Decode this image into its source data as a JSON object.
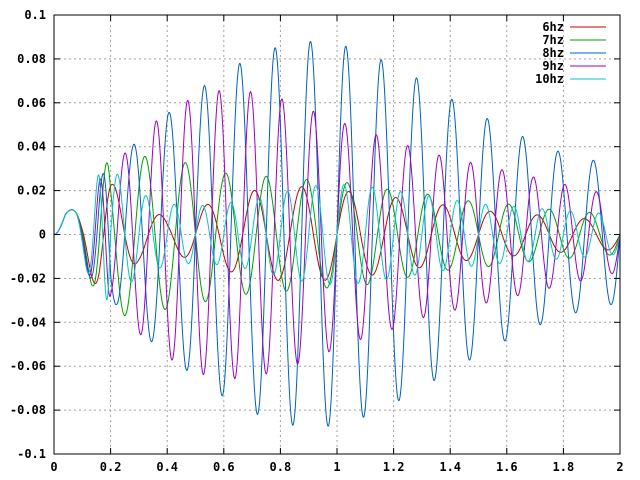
{
  "chart_data": {
    "type": "line",
    "title": "",
    "xlabel": "",
    "ylabel": "",
    "xlim": [
      0,
      2
    ],
    "ylim": [
      -0.1,
      0.1
    ],
    "grid": true,
    "legend_position": "top-right",
    "x_ticks": [
      0,
      0.2,
      0.4,
      0.6,
      0.8,
      1,
      1.2,
      1.4,
      1.6,
      1.8,
      2
    ],
    "x_tick_labels": [
      "0",
      "0.2",
      "0.4",
      "0.6",
      "0.8",
      "1",
      "1.2",
      "1.4",
      "1.6",
      "1.8",
      "2"
    ],
    "y_ticks": [
      -0.1,
      -0.08,
      -0.06,
      -0.04,
      -0.02,
      0,
      0.02,
      0.04,
      0.06,
      0.08,
      0.1
    ],
    "y_tick_labels": [
      "-0.1",
      "-0.08",
      "-0.06",
      "-0.04",
      "-0.02",
      "0",
      "0.02",
      "0.04",
      "0.06",
      "0.08",
      "0.1"
    ],
    "series": [
      {
        "name": "6hz",
        "color": "#cc0000",
        "x": [
          0,
          0.04,
          0.07,
          0.1,
          0.13,
          0.16,
          0.19,
          0.22,
          0.25,
          0.3,
          0.4,
          0.5,
          0.6,
          0.7,
          0.8,
          0.9,
          1.0,
          1.1,
          1.2,
          1.3,
          1.4,
          1.5,
          1.6,
          1.7,
          1.8,
          1.9,
          2.0
        ],
        "amplitude": [
          0,
          0.01,
          0.012,
          0.013,
          0.02,
          0.025,
          0.024,
          0.022,
          0.018,
          0.012,
          0.008,
          0.012,
          0.016,
          0.02,
          0.021,
          0.022,
          0.02,
          0.019,
          0.017,
          0.015,
          0.013,
          0.011,
          0.01,
          0.009,
          0.008,
          0.007,
          0.007
        ],
        "frequency": 6
      },
      {
        "name": "7hz",
        "color": "#00a000",
        "x": [
          0,
          0.04,
          0.07,
          0.1,
          0.13,
          0.16,
          0.19,
          0.22,
          0.25,
          0.3,
          0.4,
          0.5,
          0.6,
          0.7,
          0.8,
          0.9,
          1.0,
          1.1,
          1.2,
          1.3,
          1.4,
          1.5,
          1.6,
          1.7,
          1.8,
          1.9,
          2.0
        ],
        "amplitude": [
          0,
          0.01,
          0.012,
          0.013,
          0.022,
          0.03,
          0.033,
          0.036,
          0.037,
          0.036,
          0.034,
          0.032,
          0.028,
          0.027,
          0.026,
          0.025,
          0.024,
          0.023,
          0.02,
          0.019,
          0.016,
          0.015,
          0.014,
          0.012,
          0.011,
          0.01,
          0.009
        ],
        "frequency": 7
      },
      {
        "name": "8hz",
        "color": "#0060c0",
        "x": [
          0,
          0.04,
          0.07,
          0.1,
          0.13,
          0.16,
          0.19,
          0.22,
          0.25,
          0.3,
          0.4,
          0.5,
          0.6,
          0.7,
          0.8,
          0.9,
          1.0,
          1.1,
          1.2,
          1.3,
          1.4,
          1.5,
          1.6,
          1.7,
          1.8,
          1.9,
          2.0
        ],
        "amplitude": [
          0,
          0.01,
          0.012,
          0.013,
          0.02,
          0.026,
          0.03,
          0.032,
          0.036,
          0.044,
          0.055,
          0.065,
          0.074,
          0.081,
          0.086,
          0.088,
          0.087,
          0.083,
          0.077,
          0.07,
          0.062,
          0.055,
          0.048,
          0.042,
          0.037,
          0.034,
          0.031
        ],
        "frequency": 8
      },
      {
        "name": "9hz",
        "color": "#a000c0",
        "x": [
          0,
          0.04,
          0.07,
          0.1,
          0.13,
          0.16,
          0.19,
          0.22,
          0.25,
          0.3,
          0.4,
          0.5,
          0.6,
          0.7,
          0.8,
          0.9,
          1.0,
          1.1,
          1.2,
          1.3,
          1.4,
          1.5,
          1.6,
          1.7,
          1.8,
          1.9,
          2.0
        ],
        "amplitude": [
          0,
          0.01,
          0.012,
          0.013,
          0.02,
          0.025,
          0.027,
          0.032,
          0.037,
          0.045,
          0.056,
          0.063,
          0.066,
          0.065,
          0.062,
          0.057,
          0.052,
          0.047,
          0.043,
          0.038,
          0.035,
          0.032,
          0.029,
          0.026,
          0.023,
          0.02,
          0.017
        ],
        "frequency": 9
      },
      {
        "name": "10hz",
        "color": "#00c8c8",
        "x": [
          0,
          0.04,
          0.07,
          0.1,
          0.13,
          0.16,
          0.19,
          0.22,
          0.25,
          0.3,
          0.4,
          0.5,
          0.6,
          0.7,
          0.8,
          0.9,
          1.0,
          1.1,
          1.2,
          1.3,
          1.4,
          1.5,
          1.6,
          1.7,
          1.8,
          1.9,
          2.0
        ],
        "amplitude": [
          0,
          0.01,
          0.012,
          0.013,
          0.02,
          0.028,
          0.03,
          0.028,
          0.024,
          0.019,
          0.014,
          0.013,
          0.014,
          0.016,
          0.019,
          0.022,
          0.023,
          0.022,
          0.02,
          0.018,
          0.016,
          0.014,
          0.013,
          0.012,
          0.011,
          0.01,
          0.009
        ],
        "frequency": 10
      }
    ]
  }
}
